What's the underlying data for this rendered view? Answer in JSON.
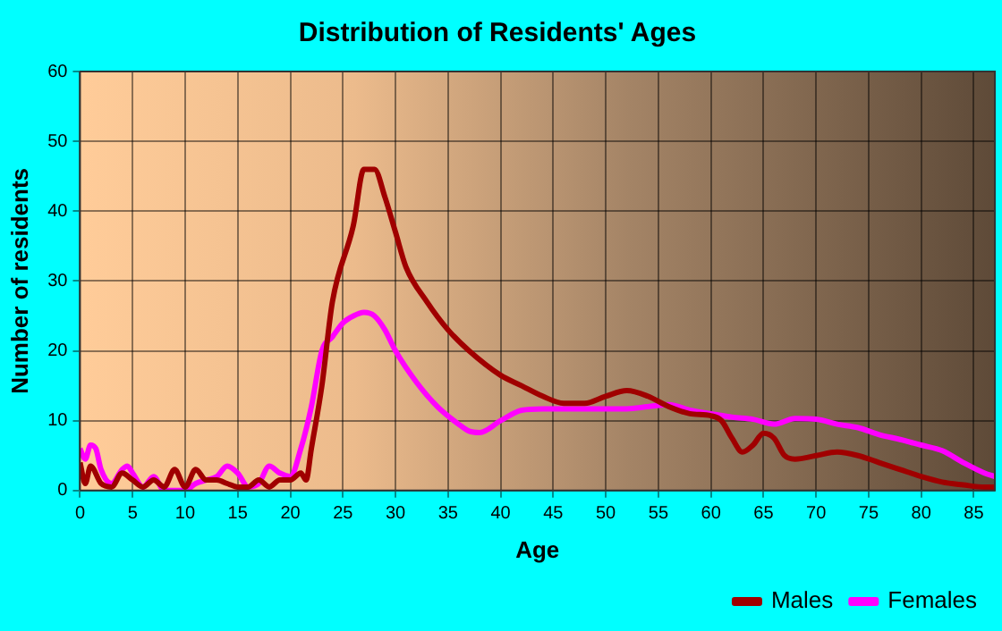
{
  "chart_data": {
    "type": "line",
    "title": "Distribution of Residents' Ages",
    "xlabel": "Age",
    "ylabel": "Number of residents",
    "xlim": [
      0,
      87
    ],
    "xticks": [
      0,
      5,
      10,
      15,
      20,
      25,
      30,
      35,
      40,
      45,
      50,
      55,
      60,
      65,
      70,
      75,
      80,
      85
    ],
    "ylim": [
      0,
      60
    ],
    "yticks": [
      0,
      10,
      20,
      30,
      40,
      50,
      60
    ],
    "grid": true,
    "legend": "bottom right",
    "marker": "none",
    "line_style": "solid",
    "series": [
      {
        "name": "Males",
        "color": "#a00000",
        "x": [
          0,
          0.5,
          1,
          2,
          3,
          4,
          5,
          6,
          7,
          8,
          9,
          10,
          11,
          12,
          13,
          14,
          15,
          16,
          17,
          18,
          19,
          20,
          21,
          21.5,
          22,
          23,
          24,
          26,
          27,
          28,
          29,
          30,
          31,
          33,
          35,
          37,
          40,
          42,
          44,
          46,
          48,
          50,
          52,
          54,
          56,
          58,
          60,
          61,
          62,
          63,
          64,
          65,
          66,
          67,
          68,
          70,
          72,
          74,
          76,
          78,
          80,
          82,
          84,
          86,
          87
        ],
        "values": [
          4,
          1,
          3.5,
          1,
          0.5,
          2.5,
          1.5,
          0.5,
          1.5,
          0.5,
          3,
          0.5,
          3,
          1.5,
          1.5,
          1,
          0.5,
          0.5,
          1.5,
          0.5,
          1.5,
          1.5,
          2.5,
          1.5,
          6,
          15,
          27,
          38,
          46,
          46,
          42,
          37,
          32,
          27,
          23,
          20,
          16.5,
          15,
          13.5,
          12.5,
          12.5,
          13.5,
          14.3,
          13.5,
          12,
          11,
          10.7,
          10,
          7.5,
          5.5,
          6.5,
          8.2,
          7.5,
          5,
          4.5,
          5,
          5.5,
          5,
          4,
          3,
          2,
          1.2,
          0.8,
          0.5,
          0.5
        ]
      },
      {
        "name": "Females",
        "color": "#ff00ff",
        "x": [
          0,
          0.5,
          1,
          1.5,
          2,
          3,
          4,
          4.5,
          5,
          6,
          7,
          8,
          9,
          10,
          11,
          12,
          13,
          14,
          15,
          16,
          17,
          18,
          19,
          20,
          21,
          22,
          23,
          24,
          25,
          26,
          27,
          28,
          29,
          30,
          32,
          34,
          36,
          37,
          38,
          40,
          42,
          44,
          48,
          52,
          54,
          56,
          58,
          60,
          62,
          64,
          66,
          68,
          70,
          72,
          74,
          76,
          78,
          80,
          82,
          84,
          86,
          87
        ],
        "values": [
          6,
          4.5,
          6.5,
          6,
          3,
          1,
          3,
          3.5,
          2.5,
          0.5,
          2,
          0,
          0,
          0,
          1,
          1.5,
          2,
          3.5,
          2.5,
          0.5,
          1,
          3.5,
          2.5,
          2,
          6,
          12,
          20,
          22,
          24,
          25,
          25.5,
          25,
          23,
          20,
          15.5,
          12,
          9.5,
          8.5,
          8.3,
          10,
          11.5,
          11.7,
          11.7,
          11.7,
          12,
          12.3,
          11.5,
          11,
          10.5,
          10.2,
          9.5,
          10.3,
          10.2,
          9.5,
          9,
          8,
          7.3,
          6.5,
          5.7,
          4,
          2.5,
          2
        ]
      }
    ]
  }
}
